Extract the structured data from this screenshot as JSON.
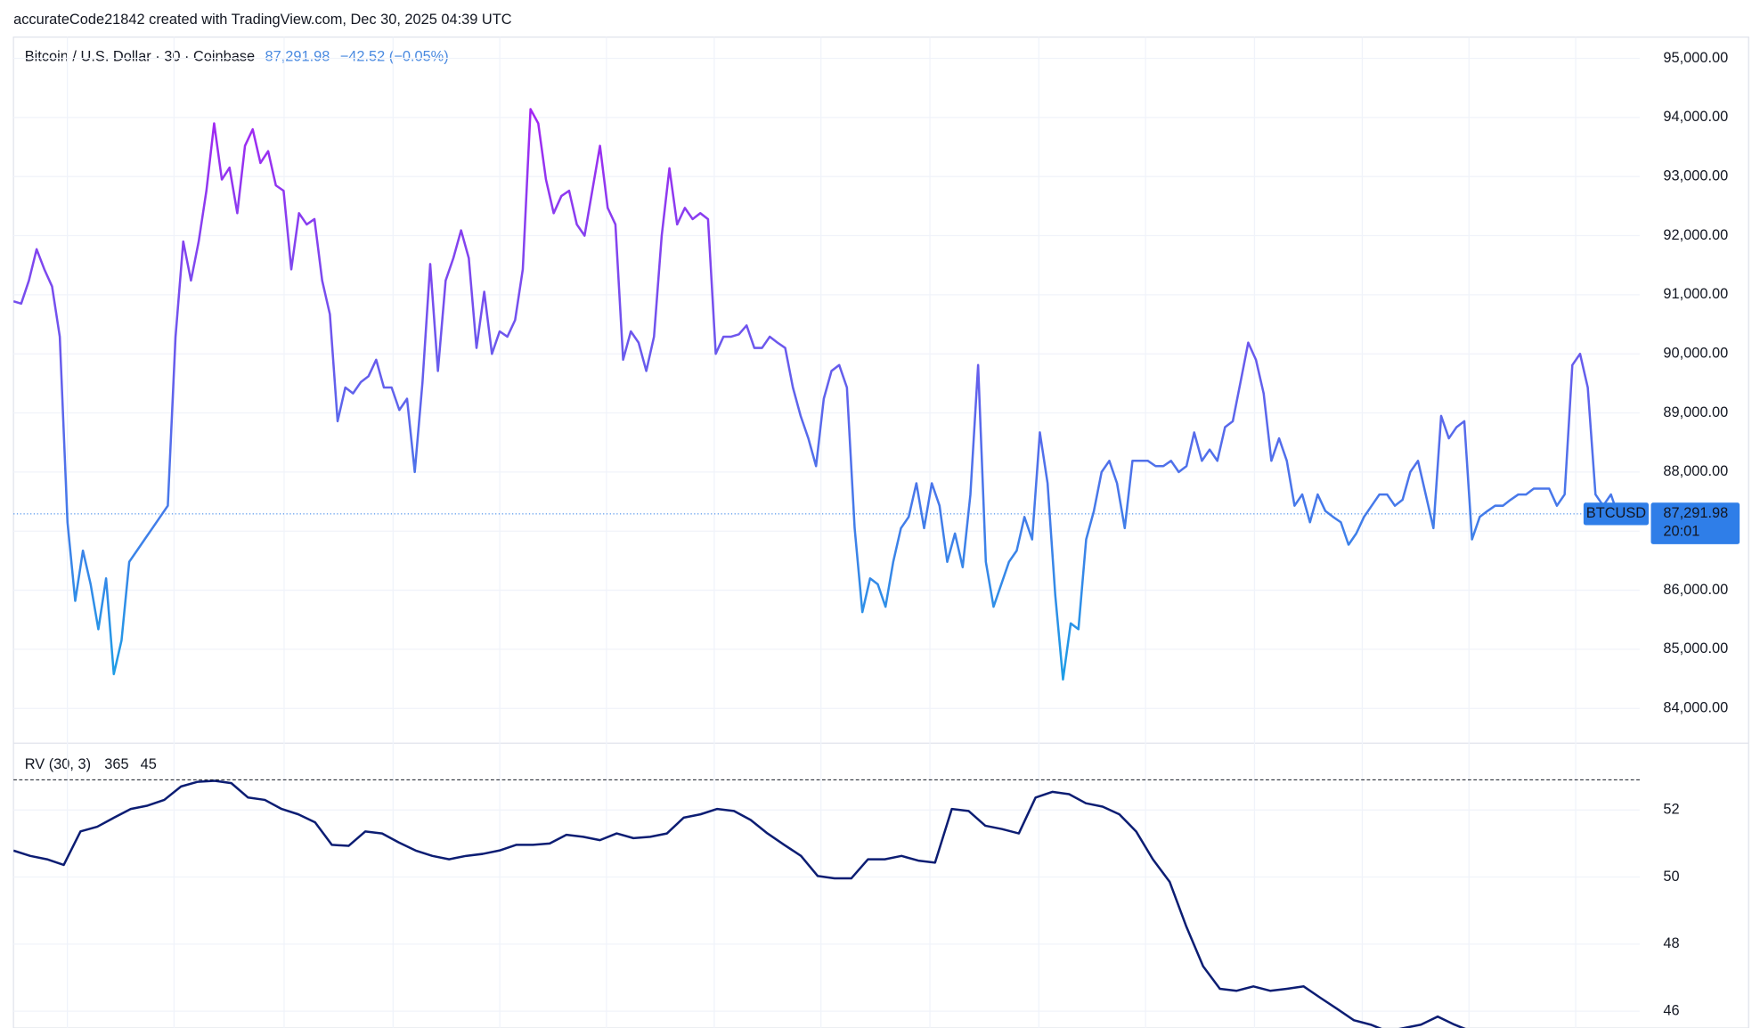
{
  "header": "accurateCode21842 created with TradingView.com, Dec 30, 2025 04:39 UTC",
  "chart_data": [
    {
      "type": "line",
      "title": "Bitcoin / U.S. Dollar · 30 · Coinbase",
      "price": {
        "value": 87291.98,
        "label": "87,291.98"
      },
      "change": "−42.52 (−0.05%)",
      "time_left": "20:01",
      "series": [
        {
          "name": "BTCUSD",
          "color_top": "#a426f2",
          "color_bottom": "#1e9de6",
          "label_color": "#2f7ee8",
          "values": [
            90890,
            90850,
            91240,
            91770,
            91430,
            91140,
            90290,
            87150,
            85820,
            86670,
            86100,
            85340,
            86200,
            84580,
            85150,
            86480,
            86670,
            86860,
            87050,
            87240,
            87430,
            90290,
            91900,
            91240,
            91900,
            92760,
            93900,
            92950,
            93150,
            92380,
            93520,
            93800,
            93230,
            93430,
            92850,
            92760,
            91430,
            92380,
            92190,
            92280,
            91240,
            90670,
            88860,
            89430,
            89330,
            89520,
            89620,
            89900,
            89430,
            89430,
            89050,
            89240,
            88000,
            89520,
            91520,
            89710,
            91240,
            91620,
            92090,
            91620,
            90100,
            91050,
            90000,
            90380,
            90290,
            90570,
            91430,
            94140,
            93900,
            92950,
            92380,
            92670,
            92760,
            92190,
            92000,
            92760,
            93520,
            92470,
            92190,
            89900,
            90380,
            90190,
            89710,
            90290,
            92000,
            93140,
            92190,
            92470,
            92280,
            92380,
            92280,
            90000,
            90290,
            90290,
            90330,
            90480,
            90100,
            90100,
            90290,
            90190,
            90100,
            89430,
            88950,
            88570,
            88100,
            89240,
            89710,
            89810,
            89430,
            87050,
            85630,
            86200,
            86100,
            85720,
            86480,
            87050,
            87240,
            87810,
            87050,
            87810,
            87430,
            86480,
            86960,
            86390,
            87620,
            89810,
            86480,
            85720,
            86100,
            86480,
            86670,
            87240,
            86860,
            88670,
            87810,
            85910,
            84490,
            85440,
            85340,
            86860,
            87340,
            88000,
            88190,
            87810,
            87050,
            88190,
            88190,
            88190,
            88100,
            88100,
            88190,
            88000,
            88100,
            88670,
            88190,
            88380,
            88190,
            88760,
            88860,
            89520,
            90190,
            89900,
            89330,
            88190,
            88570,
            88190,
            87430,
            87620,
            87150,
            87620,
            87340,
            87240,
            87150,
            86770,
            86960,
            87240,
            87430,
            87620,
            87620,
            87430,
            87530,
            88000,
            88190,
            87620,
            87050,
            88950,
            88570,
            88760,
            88860,
            86860,
            87240,
            87340,
            87430,
            87430,
            87530,
            87620,
            87620,
            87720,
            87720,
            87720,
            87430,
            87620,
            89810,
            90000,
            89430,
            87620,
            87430,
            87620,
            87240,
            87240,
            87290
          ]
        }
      ],
      "ylim": [
        83440,
        95360
      ],
      "yticks": [
        {
          "value": 84000,
          "label": "84,000.00"
        },
        {
          "value": 85000,
          "label": "85,000.00"
        },
        {
          "value": 86000,
          "label": "86,000.00"
        },
        {
          "value": 87000,
          "label": "87,000.00"
        },
        {
          "value": 88000,
          "label": "88,000.00"
        },
        {
          "value": 89000,
          "label": "89,000.00"
        },
        {
          "value": 90000,
          "label": "90,000.00"
        },
        {
          "value": 91000,
          "label": "91,000.00"
        },
        {
          "value": 92000,
          "label": "92,000.00"
        },
        {
          "value": 93000,
          "label": "93,000.00"
        },
        {
          "value": 94000,
          "label": "94,000.00"
        },
        {
          "value": 95000,
          "label": "95,000.00"
        }
      ],
      "grid": true
    },
    {
      "type": "line",
      "title": "RV (30, 3)",
      "inputs": [
        365,
        45
      ],
      "level": 52.9,
      "series": [
        {
          "color": "#0c1d73",
          "values": [
            50.79,
            50.63,
            50.53,
            50.36,
            51.36,
            51.5,
            51.77,
            52.03,
            52.13,
            52.3,
            52.7,
            52.84,
            52.87,
            52.8,
            52.37,
            52.3,
            52.03,
            51.87,
            51.63,
            50.96,
            50.93,
            51.36,
            51.3,
            51.03,
            50.79,
            50.63,
            50.53,
            50.63,
            50.69,
            50.79,
            50.96,
            50.96,
            51.0,
            51.26,
            51.2,
            51.1,
            51.3,
            51.16,
            51.2,
            51.3,
            51.77,
            51.87,
            52.03,
            51.97,
            51.7,
            51.3,
            50.96,
            50.63,
            50.03,
            49.96,
            49.96,
            50.53,
            50.53,
            50.63,
            50.49,
            50.43,
            52.03,
            51.97,
            51.53,
            51.43,
            51.3,
            52.37,
            52.54,
            52.47,
            52.2,
            52.1,
            51.87,
            51.36,
            50.53,
            49.86,
            48.52,
            47.34,
            46.67,
            46.61,
            46.74,
            46.61,
            46.67,
            46.74,
            46.4,
            46.07,
            45.73,
            45.6,
            45.4,
            45.5,
            45.6,
            45.84,
            45.6,
            45.4
          ]
        }
      ],
      "ylim": [
        45.5,
        53.94
      ],
      "yticks": [
        46,
        48,
        50,
        52
      ],
      "grid": true
    }
  ]
}
